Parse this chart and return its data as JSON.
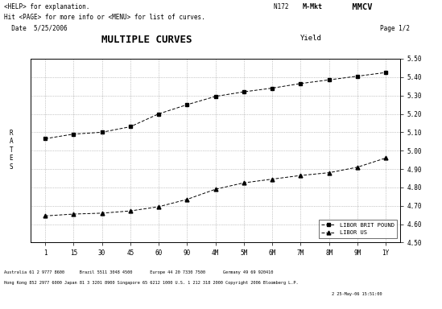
{
  "title": "MULTIPLE CURVES",
  "yield_label": "Yield",
  "header_line1": "<HELP> for explanation.",
  "header_line2": "Hit <PAGE> for more info or <MENU> for list of curves.",
  "header_line3": "  Date  5/25/2006",
  "header_right1": "N172 M-Mkt  MMCV",
  "header_right2": "Page 1/2",
  "footer_line1": "Australia 61 2 9777 8600      Brazil 5511 3048 4500       Europe 44 20 7330 7500       Germany 49 69 920410",
  "footer_line2": "Hong Kong 852 2977 6000 Japan 81 3 3201 8900 Singapore 65 6212 1000 U.S. 1 212 318 2000 Copyright 2006 Bloomberg L.P.",
  "footer_line3": "2 25-May-06 15:51:00",
  "ylabel_left": "R\nA\nT\nE\nS",
  "x_labels": [
    "1",
    "15",
    "30",
    "45",
    "60",
    "90",
    "4M",
    "5M",
    "6M",
    "7M",
    "8M",
    "9M",
    "1Y"
  ],
  "x_positions": [
    0,
    1,
    2,
    3,
    4,
    5,
    6,
    7,
    8,
    9,
    10,
    11,
    12
  ],
  "gbp_values": [
    5.065,
    5.09,
    5.1,
    5.13,
    5.2,
    5.25,
    5.295,
    5.32,
    5.34,
    5.365,
    5.385,
    5.405,
    5.425
  ],
  "usd_values": [
    4.645,
    4.655,
    4.66,
    4.672,
    4.695,
    4.735,
    4.79,
    4.825,
    4.845,
    4.865,
    4.88,
    4.91,
    4.96
  ],
  "ylim_min": 4.5,
  "ylim_max": 5.5,
  "ytick_step": 0.1,
  "bg_color": "#ffffff",
  "grid_color": "#999999",
  "line_color": "#000000",
  "legend_gbp": "LIBOR BRIT POUND",
  "legend_usd": "LIBOR US",
  "gbp_marker": "s",
  "usd_marker": "^"
}
